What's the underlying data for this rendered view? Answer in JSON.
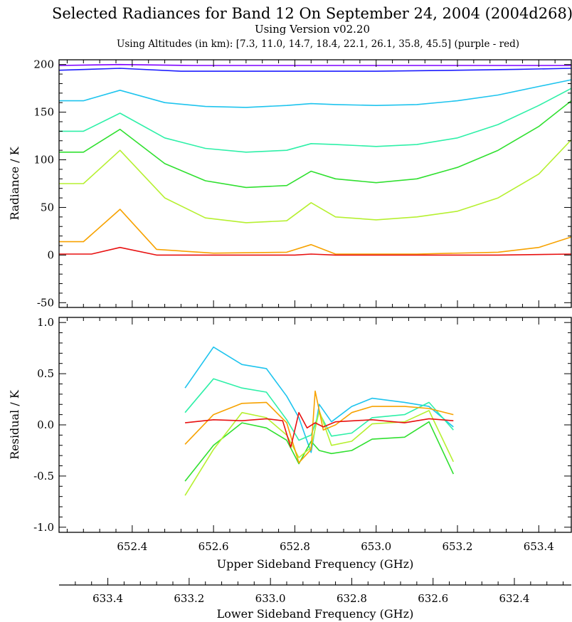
{
  "figure": {
    "title": "Selected Radiances for Band 12 On September 24, 2004 (2004d268)",
    "subtitle": "Using Version v02.20",
    "subtitle2": "Using Altitudes (in km): [7.3, 11.0, 14.7, 18.4, 22.1, 26.1, 35.8, 45.5] (purple - red)",
    "x_upper_label": "Upper Sideband Frequency (GHz)",
    "x_lower_label": "Lower Sideband Frequency (GHz)"
  },
  "chart_data": [
    {
      "type": "line",
      "panel": "radiance",
      "ylabel": "Radiance / K",
      "xlim": [
        652.22,
        653.48
      ],
      "ylim": [
        -55,
        205
      ],
      "yticks": [
        -50,
        0,
        50,
        100,
        150,
        200
      ],
      "xticks": [
        652.4,
        652.6,
        652.8,
        653.0,
        653.2,
        653.4
      ],
      "xtick_labels": [
        "652.4",
        "652.6",
        "652.8",
        "653.0",
        "653.2",
        "653.4"
      ],
      "ytick_labels": [
        "-50",
        "0",
        "50",
        "100",
        "150",
        "200"
      ],
      "grid": false,
      "series": [
        {
          "altitude_km": 7.3,
          "color": "#7f00ff",
          "x": [
            652.22,
            652.37,
            652.55,
            652.8,
            653.0,
            653.2,
            653.48
          ],
          "y": [
            199,
            200,
            199,
            199,
            199,
            199,
            199
          ]
        },
        {
          "altitude_km": 11.0,
          "color": "#1c1cff",
          "x": [
            652.22,
            652.37,
            652.52,
            652.7,
            652.85,
            653.0,
            653.2,
            653.35,
            653.48
          ],
          "y": [
            194,
            196,
            193,
            193,
            193,
            193,
            194,
            195,
            196
          ]
        },
        {
          "altitude_km": 14.7,
          "color": "#1ec4ee",
          "x": [
            652.22,
            652.28,
            652.37,
            652.48,
            652.58,
            652.68,
            652.78,
            652.84,
            652.9,
            653.0,
            653.1,
            653.2,
            653.3,
            653.4,
            653.48
          ],
          "y": [
            162,
            162,
            173,
            160,
            156,
            155,
            157,
            159,
            158,
            157,
            158,
            162,
            168,
            177,
            184
          ]
        },
        {
          "altitude_km": 18.4,
          "color": "#2ef0a8",
          "x": [
            652.22,
            652.28,
            652.37,
            652.48,
            652.58,
            652.68,
            652.78,
            652.84,
            652.9,
            653.0,
            653.1,
            653.2,
            653.3,
            653.4,
            653.48
          ],
          "y": [
            130,
            130,
            149,
            123,
            112,
            108,
            110,
            117,
            116,
            114,
            116,
            123,
            137,
            157,
            175
          ]
        },
        {
          "altitude_km": 22.1,
          "color": "#30e030",
          "x": [
            652.22,
            652.28,
            652.37,
            652.48,
            652.58,
            652.68,
            652.78,
            652.84,
            652.9,
            653.0,
            653.1,
            653.2,
            653.3,
            653.4,
            653.48
          ],
          "y": [
            108,
            108,
            132,
            96,
            78,
            71,
            73,
            88,
            80,
            76,
            80,
            92,
            110,
            135,
            162
          ]
        },
        {
          "altitude_km": 26.1,
          "color": "#b6f030",
          "x": [
            652.22,
            652.28,
            652.37,
            652.48,
            652.58,
            652.68,
            652.78,
            652.84,
            652.9,
            653.0,
            653.1,
            653.2,
            653.3,
            653.4,
            653.48
          ],
          "y": [
            75,
            75,
            110,
            60,
            39,
            34,
            36,
            55,
            40,
            37,
            40,
            46,
            60,
            85,
            121
          ]
        },
        {
          "altitude_km": 35.8,
          "color": "#f7a200",
          "x": [
            652.22,
            652.28,
            652.37,
            652.46,
            652.6,
            652.78,
            652.84,
            652.9,
            653.1,
            653.3,
            653.4,
            653.48
          ],
          "y": [
            14,
            14,
            48,
            6,
            2,
            3,
            11,
            1,
            1,
            3,
            8,
            19
          ]
        },
        {
          "altitude_km": 45.5,
          "color": "#e81010",
          "x": [
            652.22,
            652.3,
            652.37,
            652.46,
            652.6,
            652.8,
            652.84,
            652.9,
            653.1,
            653.3,
            653.48
          ],
          "y": [
            1,
            1,
            8,
            0,
            0,
            0,
            1,
            0,
            0,
            0,
            1
          ]
        }
      ]
    },
    {
      "type": "line",
      "panel": "residual",
      "ylabel": "Residual / K",
      "xlim": [
        652.22,
        653.48
      ],
      "ylim": [
        -1.05,
        1.05
      ],
      "yticks": [
        -1.0,
        -0.5,
        0.0,
        0.5,
        1.0
      ],
      "ytick_labels": [
        "-1.0",
        "-0.5",
        "0.0",
        "0.5",
        "1.0"
      ],
      "xticks": [
        652.4,
        652.6,
        652.8,
        653.0,
        653.2,
        653.4
      ],
      "grid": false,
      "series": [
        {
          "altitude_km": 14.7,
          "color": "#1ec4ee",
          "x": [
            652.53,
            652.6,
            652.67,
            652.73,
            652.78,
            652.81,
            652.84,
            652.86,
            652.89,
            652.94,
            652.99,
            653.07,
            653.13,
            653.19
          ],
          "y": [
            0.36,
            0.76,
            0.59,
            0.55,
            0.28,
            0.07,
            -0.27,
            0.2,
            0.03,
            0.18,
            0.26,
            0.22,
            0.18,
            -0.02
          ]
        },
        {
          "altitude_km": 18.4,
          "color": "#2ef0a8",
          "x": [
            652.53,
            652.6,
            652.67,
            652.73,
            652.78,
            652.81,
            652.84,
            652.86,
            652.89,
            652.94,
            652.99,
            653.07,
            653.13,
            653.19
          ],
          "y": [
            0.12,
            0.45,
            0.36,
            0.32,
            0.05,
            -0.15,
            -0.1,
            0.12,
            -0.11,
            -0.08,
            0.07,
            0.1,
            0.22,
            -0.05
          ]
        },
        {
          "altitude_km": 22.1,
          "color": "#30e030",
          "x": [
            652.53,
            652.6,
            652.67,
            652.73,
            652.78,
            652.81,
            652.84,
            652.86,
            652.89,
            652.94,
            652.99,
            653.07,
            653.13,
            653.19
          ],
          "y": [
            -0.55,
            -0.2,
            0.02,
            -0.03,
            -0.15,
            -0.38,
            -0.16,
            -0.25,
            -0.28,
            -0.25,
            -0.14,
            -0.12,
            0.03,
            -0.48
          ]
        },
        {
          "altitude_km": 26.1,
          "color": "#b6f030",
          "x": [
            652.53,
            652.6,
            652.67,
            652.73,
            652.78,
            652.81,
            652.84,
            652.86,
            652.89,
            652.94,
            652.99,
            653.07,
            653.13,
            653.19
          ],
          "y": [
            -0.69,
            -0.24,
            0.12,
            0.07,
            -0.1,
            -0.32,
            -0.22,
            0.14,
            -0.2,
            -0.16,
            0.01,
            0.03,
            0.14,
            -0.36
          ]
        },
        {
          "altitude_km": 35.8,
          "color": "#f7a200",
          "x": [
            652.53,
            652.6,
            652.67,
            652.73,
            652.78,
            652.81,
            652.84,
            652.85,
            652.87,
            652.9,
            652.94,
            652.99,
            653.07,
            653.13,
            653.19
          ],
          "y": [
            -0.19,
            0.1,
            0.21,
            0.22,
            0.02,
            -0.37,
            -0.24,
            0.33,
            -0.05,
            0.0,
            0.12,
            0.18,
            0.18,
            0.16,
            0.1
          ]
        },
        {
          "altitude_km": 45.5,
          "color": "#e81010",
          "x": [
            652.53,
            652.6,
            652.67,
            652.73,
            652.77,
            652.79,
            652.81,
            652.83,
            652.85,
            652.87,
            652.9,
            652.99,
            653.07,
            653.13,
            653.19
          ],
          "y": [
            0.02,
            0.05,
            0.04,
            0.06,
            0.04,
            -0.22,
            0.12,
            -0.03,
            0.02,
            -0.02,
            0.03,
            0.05,
            0.02,
            0.06,
            0.04
          ]
        }
      ]
    },
    {
      "type": "axis",
      "panel": "lower-sideband-axis",
      "xlim": [
        633.52,
        632.26
      ],
      "xticks": [
        633.4,
        633.2,
        633.0,
        632.8,
        632.6,
        632.4
      ],
      "xtick_labels": [
        "633.4",
        "633.2",
        "633.0",
        "632.8",
        "632.6",
        "632.4"
      ]
    }
  ]
}
